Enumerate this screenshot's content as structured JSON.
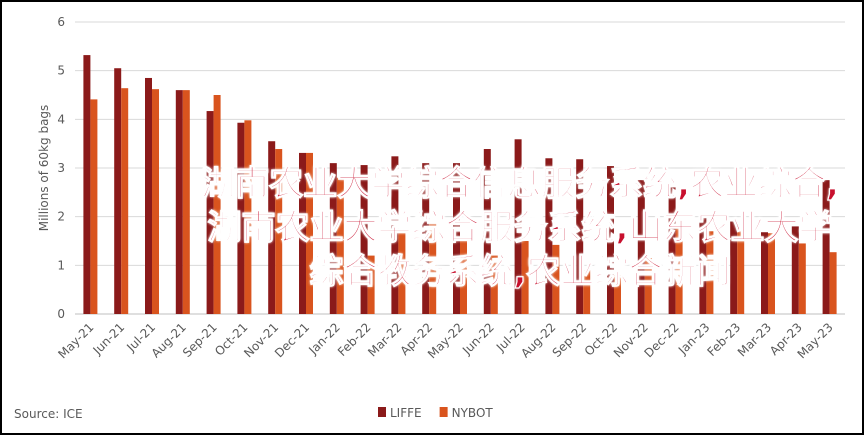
{
  "chart_data": {
    "type": "bar",
    "y_label": "Millions of 60kg bags",
    "source": "Source: ICE",
    "categories": [
      "May-21",
      "Jun-21",
      "Jul-21",
      "Aug-21",
      "Sep-21",
      "Oct-21",
      "Nov-21",
      "Dec-21",
      "Jan-22",
      "Feb-22",
      "Mar-22",
      "Apr-22",
      "May-22",
      "Jun-22",
      "Jul-22",
      "Aug-22",
      "Sep-22",
      "Oct-22",
      "Nov-22",
      "Dec-22",
      "Jan-23",
      "Feb-23",
      "Mar-23",
      "Apr-23",
      "May-23"
    ],
    "series": [
      {
        "name": "LIFFE",
        "color": "#8b1a1a",
        "values": [
          5.32,
          5.05,
          4.85,
          4.6,
          4.17,
          3.93,
          3.55,
          3.31,
          3.1,
          3.06,
          3.24,
          3.1,
          3.1,
          3.39,
          3.59,
          3.2,
          3.18,
          3.04,
          2.75,
          2.6,
          2.0,
          1.9,
          1.68,
          1.8,
          2.75
        ]
      },
      {
        "name": "NYBOT",
        "color": "#d9541e",
        "values": [
          4.41,
          4.64,
          4.62,
          4.6,
          4.5,
          3.98,
          3.39,
          3.31,
          2.8,
          1.2,
          1.7,
          1.9,
          1.5,
          1.2,
          1.5,
          1.42,
          0.9,
          0.8,
          1.15,
          1.8,
          1.7,
          1.7,
          1.66,
          1.45,
          1.27
        ]
      }
    ],
    "ylim": [
      0,
      6
    ],
    "yticks": [
      0,
      1,
      2,
      3,
      4,
      5,
      6
    ],
    "grid": true
  },
  "overlay": "湖南农业大学综合信息服务系统,农业综合,湖南农业大学综合服务系统,山东农业大学综合教务系统,农业综合新闻"
}
